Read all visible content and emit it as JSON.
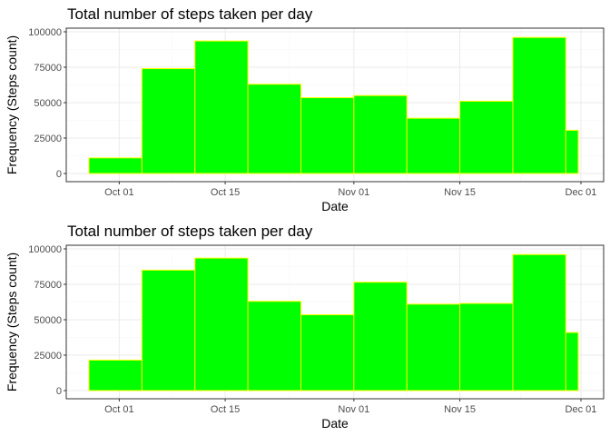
{
  "chart_data": [
    {
      "type": "bar",
      "title": "Total number of steps taken per day",
      "xlabel": "Date",
      "ylabel": "Frequency (Steps count)",
      "bar_color": "#00ff00",
      "bar_outline": "#ffff00",
      "xlim": [
        "2012-09-24",
        "2012-12-04"
      ],
      "ylim": [
        0,
        100000
      ],
      "x_ticks": [
        {
          "date": "2012-10-01",
          "label": "Oct 01"
        },
        {
          "date": "2012-10-15",
          "label": "Oct 15"
        },
        {
          "date": "2012-11-01",
          "label": "Nov 01"
        },
        {
          "date": "2012-11-15",
          "label": "Nov 15"
        },
        {
          "date": "2012-12-01",
          "label": "Dec 01"
        }
      ],
      "y_ticks": [
        {
          "value": 0,
          "label": "0"
        },
        {
          "value": 25000,
          "label": "25000"
        },
        {
          "value": 50000,
          "label": "50000"
        },
        {
          "value": 75000,
          "label": "75000"
        },
        {
          "value": 100000,
          "label": "100000"
        }
      ],
      "grid": true,
      "bins": [
        {
          "start": "2012-09-27",
          "end": "2012-10-04",
          "value": 11000
        },
        {
          "start": "2012-10-04",
          "end": "2012-10-11",
          "value": 74000
        },
        {
          "start": "2012-10-11",
          "end": "2012-10-18",
          "value": 93500
        },
        {
          "start": "2012-10-18",
          "end": "2012-10-25",
          "value": 63000
        },
        {
          "start": "2012-10-25",
          "end": "2012-11-01",
          "value": 53500
        },
        {
          "start": "2012-11-01",
          "end": "2012-11-08",
          "value": 55000
        },
        {
          "start": "2012-11-08",
          "end": "2012-11-15",
          "value": 39000
        },
        {
          "start": "2012-11-15",
          "end": "2012-11-22",
          "value": 51000
        },
        {
          "start": "2012-11-22",
          "end": "2012-11-29",
          "value": 96000
        },
        {
          "start": "2012-11-29",
          "end": "2012-12-06",
          "value": 30500
        }
      ]
    },
    {
      "type": "bar",
      "title": "Total number of steps taken per day",
      "xlabel": "Date",
      "ylabel": "Frequency (Steps count)",
      "bar_color": "#00ff00",
      "bar_outline": "#ffff00",
      "xlim": [
        "2012-09-24",
        "2012-12-04"
      ],
      "ylim": [
        0,
        100000
      ],
      "x_ticks": [
        {
          "date": "2012-10-01",
          "label": "Oct 01"
        },
        {
          "date": "2012-10-15",
          "label": "Oct 15"
        },
        {
          "date": "2012-11-01",
          "label": "Nov 01"
        },
        {
          "date": "2012-11-15",
          "label": "Nov 15"
        },
        {
          "date": "2012-12-01",
          "label": "Dec 01"
        }
      ],
      "y_ticks": [
        {
          "value": 0,
          "label": "0"
        },
        {
          "value": 25000,
          "label": "25000"
        },
        {
          "value": 50000,
          "label": "50000"
        },
        {
          "value": 75000,
          "label": "75000"
        },
        {
          "value": 100000,
          "label": "100000"
        }
      ],
      "grid": true,
      "bins": [
        {
          "start": "2012-09-27",
          "end": "2012-10-04",
          "value": 21500
        },
        {
          "start": "2012-10-04",
          "end": "2012-10-11",
          "value": 85000
        },
        {
          "start": "2012-10-11",
          "end": "2012-10-18",
          "value": 93500
        },
        {
          "start": "2012-10-18",
          "end": "2012-10-25",
          "value": 63000
        },
        {
          "start": "2012-10-25",
          "end": "2012-11-01",
          "value": 53500
        },
        {
          "start": "2012-11-01",
          "end": "2012-11-08",
          "value": 76500
        },
        {
          "start": "2012-11-08",
          "end": "2012-11-15",
          "value": 61000
        },
        {
          "start": "2012-11-15",
          "end": "2012-11-22",
          "value": 61500
        },
        {
          "start": "2012-11-22",
          "end": "2012-11-29",
          "value": 96000
        },
        {
          "start": "2012-11-29",
          "end": "2012-12-06",
          "value": 41000
        }
      ]
    }
  ]
}
